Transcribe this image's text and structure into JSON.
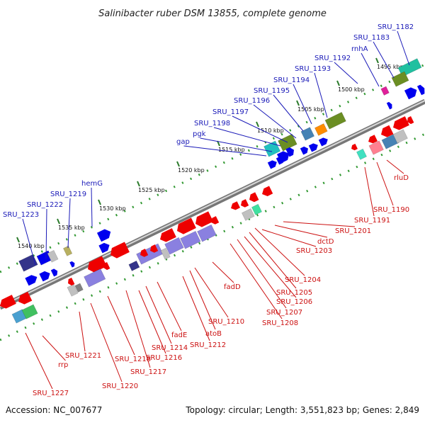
{
  "title": "Salinibacter ruber DSM 13855, complete genome",
  "footer": {
    "accession": "Accession: NC_007677",
    "summary": "Topology: circular; Length: 3,551,823 bp; Genes: 2,849"
  },
  "ticks": [
    "1495 kbp",
    "1500 kbp",
    "1505 kbp",
    "1510 kbp",
    "1515 kbp",
    "1520 kbp",
    "1525 kbp",
    "1530 kbp",
    "1535 kbp",
    "1540 kbp"
  ],
  "genes_top": [
    "SRU_1182",
    "SRU_1183",
    "rnhA",
    "SRU_1192",
    "SRU_1193",
    "SRU_1194",
    "SRU_1195",
    "SRU_1196",
    "SRU_1197",
    "SRU_1198",
    "pgk",
    "gap",
    "hemG",
    "SRU_1219",
    "SRU_1222",
    "SRU_1223"
  ],
  "genes_bottom": [
    "rluD",
    "SRU_1190",
    "SRU_1191",
    "SRU_1201",
    "dctD",
    "SRU_1203",
    "SRU_1204",
    "SRU_1205",
    "SRU_1206",
    "SRU_1207",
    "SRU_1208",
    "fadD",
    "SRU_1210",
    "atoB",
    "SRU_1212",
    "fadE",
    "SRU_1214",
    "SRU_1216",
    "SRU_1217",
    "SRU_1218",
    "SRU_1220",
    "SRU_1221",
    "rrp",
    "SRU_1227"
  ],
  "colors": {
    "forward": "#0000ee",
    "reverse": "#ee0000",
    "label_top": "#1a1ab8",
    "label_bottom": "#cc1111",
    "backbone": "#8a8a8a",
    "dots": "#339933"
  }
}
